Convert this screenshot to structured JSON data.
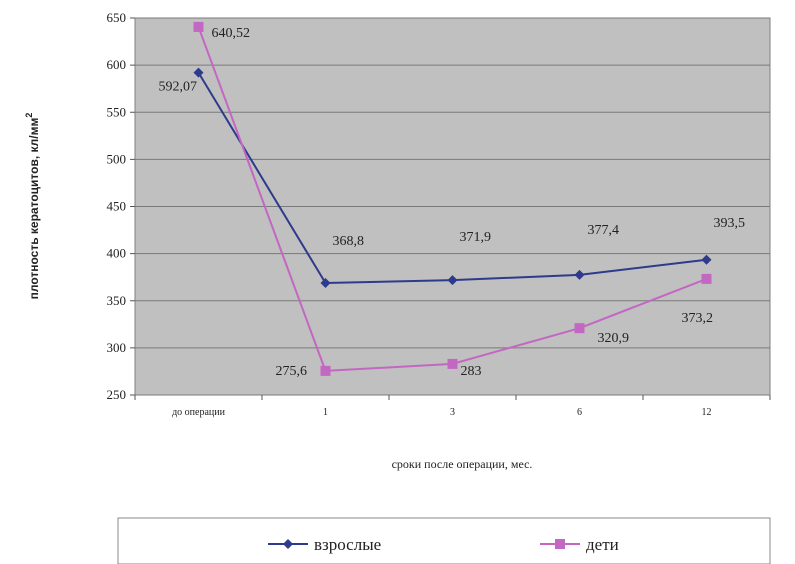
{
  "chart_data": {
    "type": "line",
    "categories": [
      "до операции",
      "1",
      "3",
      "6",
      "12"
    ],
    "series": [
      {
        "name": "взрослые",
        "values": [
          592.07,
          368.8,
          371.9,
          377.4,
          393.5
        ],
        "labels": [
          "592,07",
          "368,8",
          "371,9",
          "377,4",
          "393,5"
        ],
        "color": "#2e3a8c",
        "marker": "diamond"
      },
      {
        "name": "дети",
        "values": [
          640.52,
          275.6,
          283,
          320.9,
          373.2
        ],
        "labels": [
          "640,52",
          "275,6",
          "283",
          "320,9",
          "373,2"
        ],
        "color": "#c267c2",
        "marker": "square"
      }
    ],
    "xlabel": "сроки после операции, мес.",
    "ylabel": "плотность кератоцитов, кл/мм",
    "ylabel_superscript": "2",
    "ylim": [
      250,
      650
    ],
    "yticks": [
      250,
      300,
      350,
      400,
      450,
      500,
      550,
      600,
      650
    ],
    "grid": true,
    "legend_position": "bottom",
    "plot_background": "#c0c0c0"
  }
}
